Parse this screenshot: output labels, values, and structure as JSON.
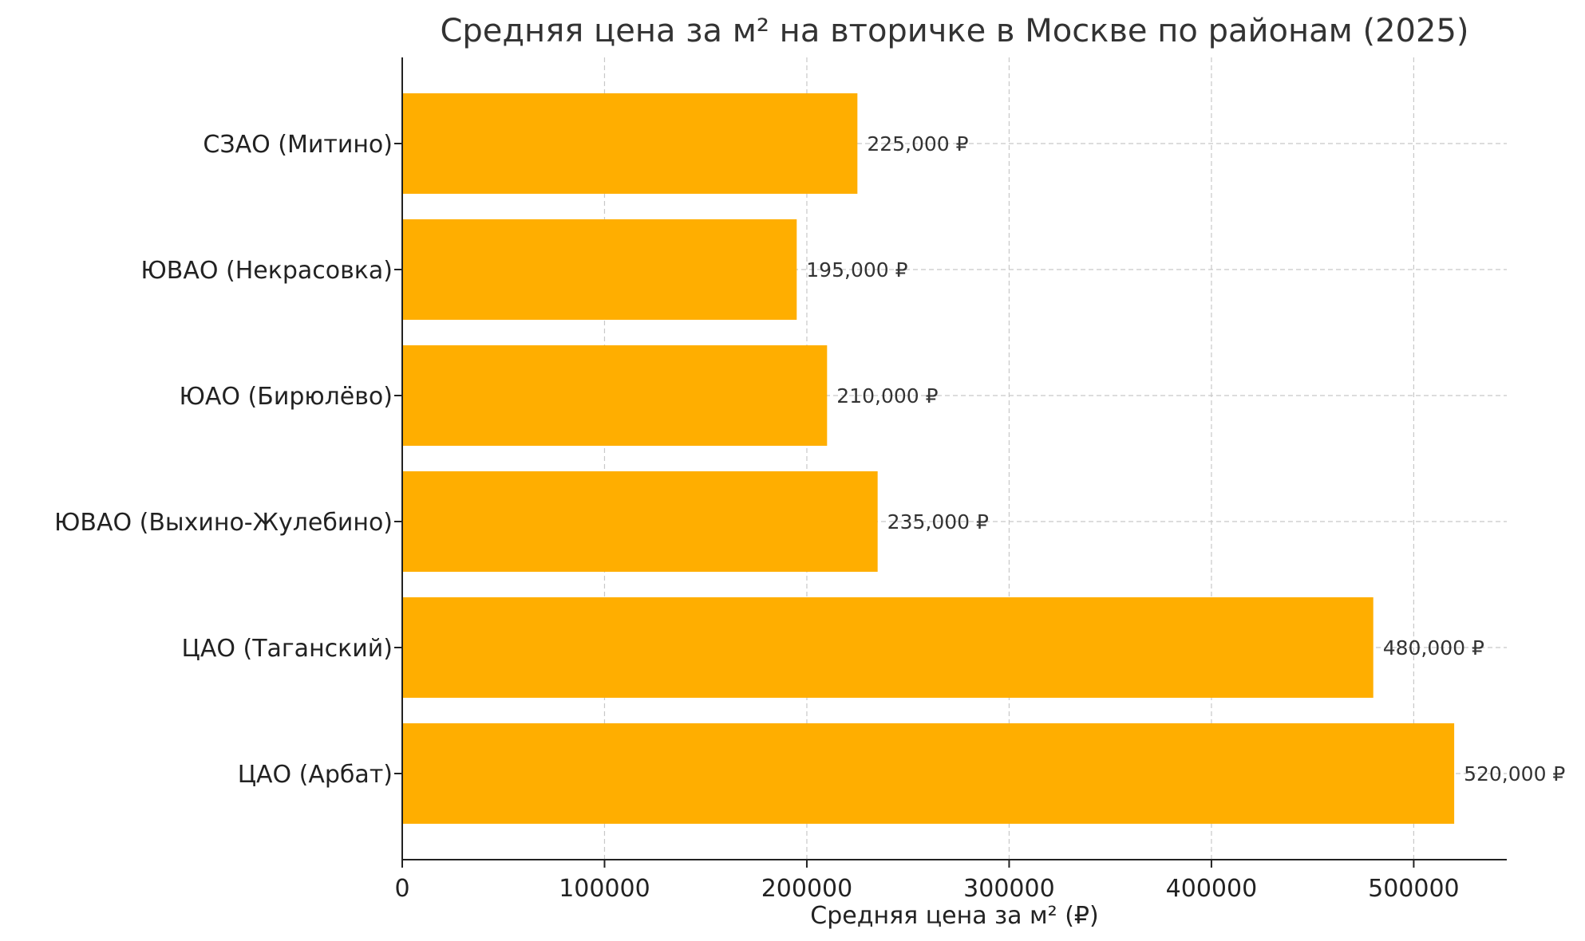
{
  "chart_data": {
    "type": "bar",
    "orientation": "horizontal",
    "title": "Средняя цена за м² на вторичке в Москве по районам (2025)",
    "xlabel": "Средняя цена за м² (₽)",
    "ylabel": "",
    "categories": [
      "СЗАО (Митино)",
      "ЮВАО (Некрасовка)",
      "ЮАО (Бирюлёво)",
      "ЮВАО (Выхино-Жулебино)",
      "ЦАО (Таганский)",
      "ЦАО (Арбат)"
    ],
    "values": [
      225000,
      195000,
      210000,
      235000,
      480000,
      520000
    ],
    "value_labels": [
      "225,000 ₽",
      "195,000 ₽",
      "210,000 ₽",
      "235,000 ₽",
      "480,000 ₽",
      "520,000 ₽"
    ],
    "xlim": [
      0,
      546000
    ],
    "xticks": [
      0,
      100000,
      200000,
      300000,
      400000,
      500000
    ],
    "xtick_labels": [
      "0",
      "100000",
      "200000",
      "300000",
      "400000",
      "500000"
    ],
    "grid": true,
    "bar_color": "#FFAE00"
  }
}
